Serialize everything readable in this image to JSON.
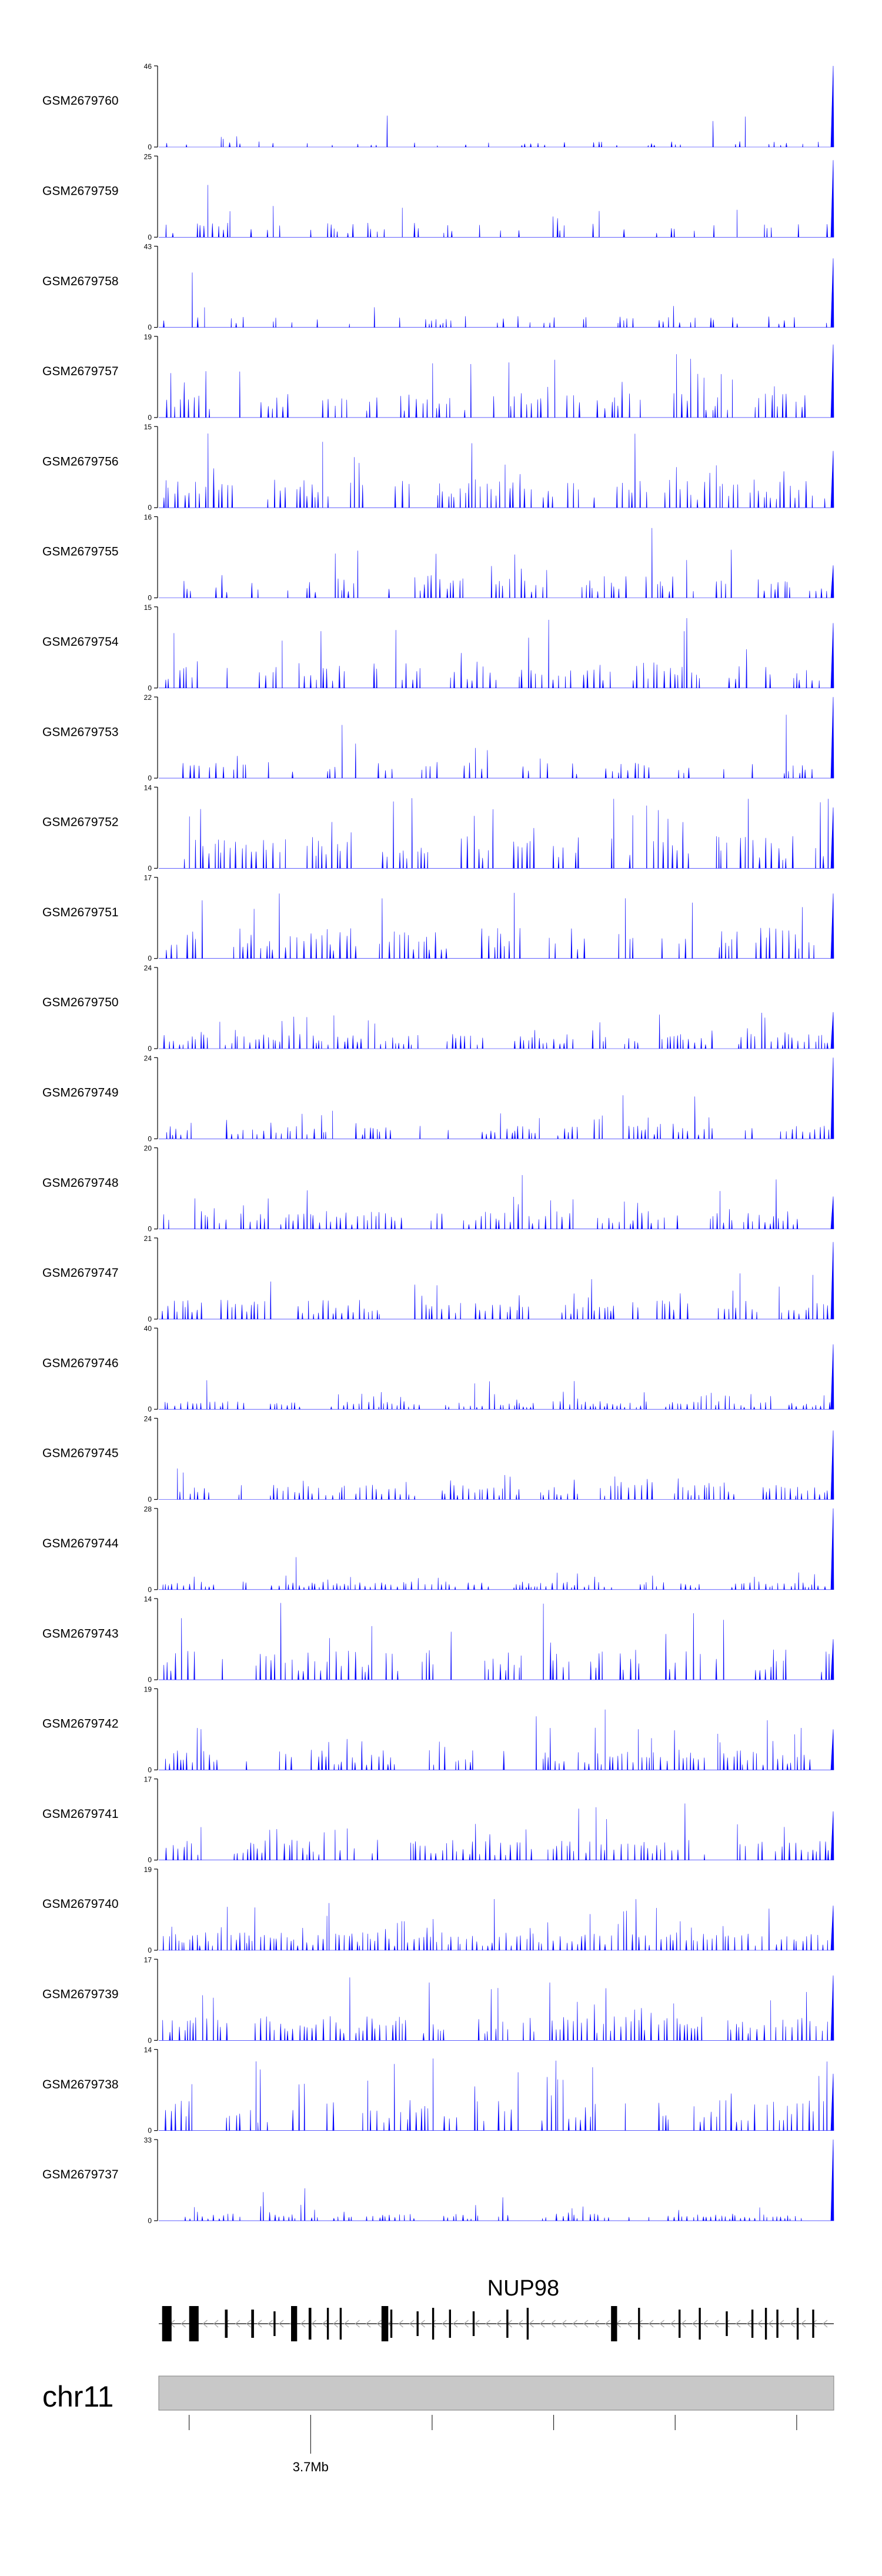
{
  "chart_data": {
    "type": "area",
    "title": "",
    "xlabel": "",
    "ylabel": "",
    "region": {
      "chromosome": "chr11",
      "gene": "NUP98",
      "x_tick_label": "3.7Mb"
    },
    "series": [
      {
        "name": "GSM2679760",
        "ymax": "46",
        "ymin": "0",
        "seed": 7601,
        "density": 0.38,
        "base": 0.07,
        "peak": 0.45,
        "edge": 1.0
      },
      {
        "name": "GSM2679759",
        "ymax": "25",
        "ymin": "0",
        "seed": 7592,
        "density": 0.55,
        "base": 0.18,
        "peak": 0.75,
        "edge": 0.95
      },
      {
        "name": "GSM2679758",
        "ymax": "43",
        "ymin": "0",
        "seed": 7583,
        "density": 0.5,
        "base": 0.14,
        "peak": 0.85,
        "edge": 0.85
      },
      {
        "name": "GSM2679757",
        "ymax": "19",
        "ymin": "0",
        "seed": 7574,
        "density": 0.8,
        "base": 0.3,
        "peak": 0.95,
        "edge": 0.9
      },
      {
        "name": "GSM2679756",
        "ymax": "15",
        "ymin": "0",
        "seed": 7565,
        "density": 0.85,
        "base": 0.35,
        "peak": 0.95,
        "edge": 0.7
      },
      {
        "name": "GSM2679755",
        "ymax": "16",
        "ymin": "0",
        "seed": 7556,
        "density": 0.8,
        "base": 0.28,
        "peak": 0.9,
        "edge": 0.4
      },
      {
        "name": "GSM2679754",
        "ymax": "15",
        "ymin": "0",
        "seed": 7547,
        "density": 0.85,
        "base": 0.33,
        "peak": 0.95,
        "edge": 0.8
      },
      {
        "name": "GSM2679753",
        "ymax": "22",
        "ymin": "0",
        "seed": 7538,
        "density": 0.7,
        "base": 0.2,
        "peak": 0.9,
        "edge": 1.0
      },
      {
        "name": "GSM2679752",
        "ymax": "14",
        "ymin": "0",
        "seed": 7529,
        "density": 0.9,
        "base": 0.4,
        "peak": 0.95,
        "edge": 0.75
      },
      {
        "name": "GSM2679751",
        "ymax": "17",
        "ymin": "0",
        "seed": 7511,
        "density": 0.8,
        "base": 0.38,
        "peak": 0.95,
        "edge": 0.8
      },
      {
        "name": "GSM2679750",
        "ymax": "24",
        "ymin": "0",
        "seed": 7502,
        "density": 0.95,
        "base": 0.18,
        "peak": 0.55,
        "edge": 0.45
      },
      {
        "name": "GSM2679749",
        "ymax": "24",
        "ymin": "0",
        "seed": 7493,
        "density": 0.9,
        "base": 0.16,
        "peak": 0.6,
        "edge": 1.0
      },
      {
        "name": "GSM2679748",
        "ymax": "20",
        "ymin": "0",
        "seed": 7484,
        "density": 0.9,
        "base": 0.22,
        "peak": 0.7,
        "edge": 0.4
      },
      {
        "name": "GSM2679747",
        "ymax": "21",
        "ymin": "0",
        "seed": 7475,
        "density": 0.9,
        "base": 0.24,
        "peak": 0.7,
        "edge": 0.95
      },
      {
        "name": "GSM2679746",
        "ymax": "40",
        "ymin": "0",
        "seed": 7466,
        "density": 0.95,
        "base": 0.1,
        "peak": 0.45,
        "edge": 0.8
      },
      {
        "name": "GSM2679745",
        "ymax": "24",
        "ymin": "0",
        "seed": 7457,
        "density": 0.9,
        "base": 0.18,
        "peak": 0.65,
        "edge": 0.85
      },
      {
        "name": "GSM2679744",
        "ymax": "28",
        "ymin": "0",
        "seed": 7448,
        "density": 0.9,
        "base": 0.1,
        "peak": 0.5,
        "edge": 1.0
      },
      {
        "name": "GSM2679743",
        "ymax": "14",
        "ymin": "0",
        "seed": 7439,
        "density": 0.85,
        "base": 0.38,
        "peak": 0.95,
        "edge": 0.5
      },
      {
        "name": "GSM2679742",
        "ymax": "19",
        "ymin": "0",
        "seed": 7421,
        "density": 0.9,
        "base": 0.25,
        "peak": 0.85,
        "edge": 0.5
      },
      {
        "name": "GSM2679741",
        "ymax": "17",
        "ymin": "0",
        "seed": 7412,
        "density": 0.95,
        "base": 0.25,
        "peak": 0.85,
        "edge": 0.6
      },
      {
        "name": "GSM2679740",
        "ymax": "19",
        "ymin": "0",
        "seed": 7403,
        "density": 1.0,
        "base": 0.22,
        "peak": 0.65,
        "edge": 0.55
      },
      {
        "name": "GSM2679739",
        "ymax": "17",
        "ymin": "0",
        "seed": 7394,
        "density": 0.95,
        "base": 0.3,
        "peak": 0.85,
        "edge": 0.8
      },
      {
        "name": "GSM2679738",
        "ymax": "14",
        "ymin": "0",
        "seed": 7385,
        "density": 0.85,
        "base": 0.38,
        "peak": 0.9,
        "edge": 0.7
      },
      {
        "name": "GSM2679737",
        "ymax": "33",
        "ymin": "0",
        "seed": 7376,
        "density": 0.85,
        "base": 0.09,
        "peak": 0.4,
        "edge": 1.0
      }
    ],
    "gene_model": {
      "exons": [
        {
          "pos": 0.005,
          "w": 0.014,
          "h": 1.0
        },
        {
          "pos": 0.045,
          "w": 0.014,
          "h": 1.0
        },
        {
          "pos": 0.098,
          "w": 0.004,
          "h": 0.8
        },
        {
          "pos": 0.137,
          "w": 0.004,
          "h": 0.8
        },
        {
          "pos": 0.17,
          "w": 0.003,
          "h": 0.7
        },
        {
          "pos": 0.196,
          "w": 0.009,
          "h": 1.0
        },
        {
          "pos": 0.222,
          "w": 0.004,
          "h": 0.9
        },
        {
          "pos": 0.249,
          "w": 0.003,
          "h": 0.9
        },
        {
          "pos": 0.268,
          "w": 0.003,
          "h": 0.9
        },
        {
          "pos": 0.33,
          "w": 0.01,
          "h": 1.0
        },
        {
          "pos": 0.343,
          "w": 0.003,
          "h": 0.8
        },
        {
          "pos": 0.382,
          "w": 0.003,
          "h": 0.7
        },
        {
          "pos": 0.405,
          "w": 0.003,
          "h": 0.9
        },
        {
          "pos": 0.43,
          "w": 0.003,
          "h": 0.8
        },
        {
          "pos": 0.465,
          "w": 0.003,
          "h": 0.7
        },
        {
          "pos": 0.515,
          "w": 0.003,
          "h": 0.8
        },
        {
          "pos": 0.545,
          "w": 0.003,
          "h": 0.9
        },
        {
          "pos": 0.67,
          "w": 0.009,
          "h": 1.0
        },
        {
          "pos": 0.71,
          "w": 0.003,
          "h": 0.9
        },
        {
          "pos": 0.77,
          "w": 0.003,
          "h": 0.8
        },
        {
          "pos": 0.8,
          "w": 0.003,
          "h": 0.9
        },
        {
          "pos": 0.84,
          "w": 0.003,
          "h": 0.7
        },
        {
          "pos": 0.878,
          "w": 0.003,
          "h": 0.8
        },
        {
          "pos": 0.898,
          "w": 0.003,
          "h": 0.9
        },
        {
          "pos": 0.915,
          "w": 0.003,
          "h": 0.8
        },
        {
          "pos": 0.945,
          "w": 0.003,
          "h": 0.9
        },
        {
          "pos": 0.968,
          "w": 0.003,
          "h": 0.8
        }
      ]
    },
    "axis_ticks": [
      0.045,
      0.225,
      0.405,
      0.585,
      0.765,
      0.945
    ],
    "labeled_tick_index": 1
  },
  "colors": {
    "signal": "#0000FF",
    "axis": "#000000",
    "label": "#000000",
    "ideogram_fill": "#C8C8C8",
    "ideogram_stroke": "#7F7F7F",
    "gene": "#000000",
    "intron_arrow": "#A8A8A8"
  }
}
